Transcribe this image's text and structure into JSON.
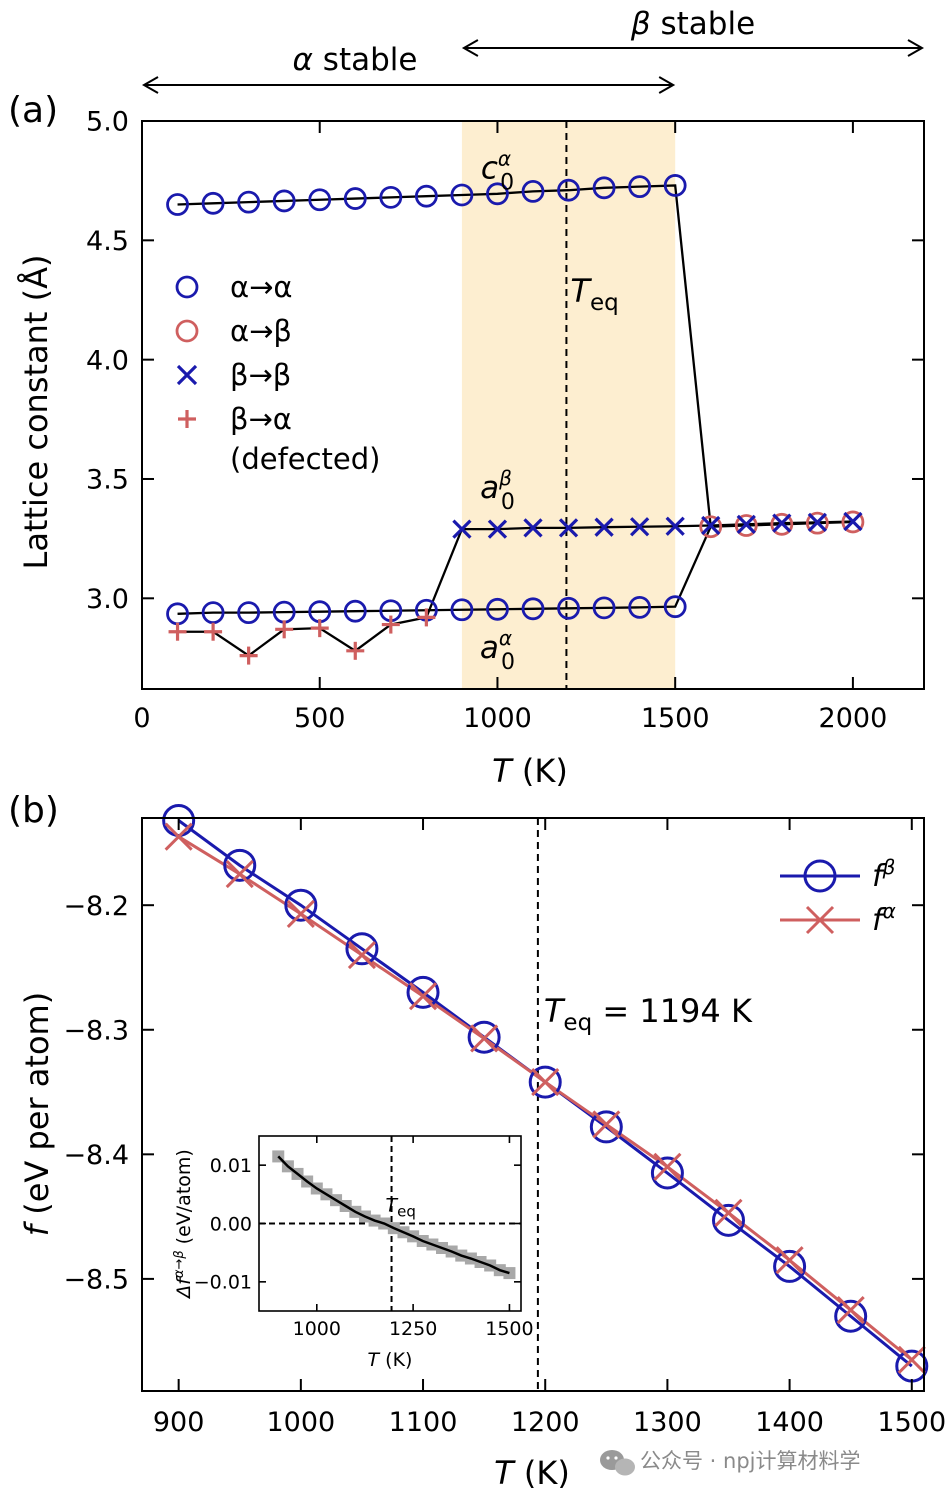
{
  "chart_data": [
    {
      "panel": "(a)",
      "type": "scatter",
      "xlabel": "T (K)",
      "ylabel": "Lattice constant (Å)",
      "xlim": [
        0,
        2200
      ],
      "ylim": [
        2.62,
        5.0
      ],
      "xticks": [
        0,
        500,
        1000,
        1500,
        2000
      ],
      "yticks": [
        3.0,
        3.5,
        4.0,
        4.5,
        5.0
      ],
      "xtick_labels": [
        "0",
        "500",
        "1000",
        "1500",
        "2000"
      ],
      "ytick_labels": [
        "3.0",
        "3.5",
        "4.0",
        "4.5",
        "5.0"
      ],
      "shaded_region": {
        "x": [
          900,
          1500
        ],
        "color": "#fdeed0"
      },
      "vline": {
        "x": 1194,
        "label": "T",
        "label_sub": "eq"
      },
      "regions": {
        "alpha": {
          "greek": "α",
          "text": " stable",
          "x": [
            0,
            1500
          ]
        },
        "beta": {
          "greek": "β",
          "text": " stable",
          "x": [
            900,
            2200
          ]
        }
      },
      "annotations": [
        {
          "base": "c",
          "sub": "0",
          "sup": "α",
          "x": 1000,
          "y": 4.76
        },
        {
          "base": "a",
          "sub": "0",
          "sup": "β",
          "x": 1000,
          "y": 3.42
        },
        {
          "base": "a",
          "sub": "0",
          "sup": "α",
          "x": 1000,
          "y": 2.75
        }
      ],
      "legend": {
        "placement": "center-left",
        "entries": [
          {
            "label": "α→α",
            "marker": "circle",
            "color": "#1a1aad"
          },
          {
            "label": "α→β",
            "marker": "circle",
            "color": "#cf5f5f"
          },
          {
            "label": "β→β",
            "marker": "x",
            "color": "#1a1aad"
          },
          {
            "label": "β→α",
            "label2": "(defected)",
            "marker": "plus",
            "color": "#cf5f5f"
          }
        ]
      },
      "series": [
        {
          "id": "c0",
          "legend_id": "α→α",
          "marker": "circle",
          "color": "#1a1aad",
          "x": [
            100,
            200,
            300,
            400,
            500,
            600,
            700,
            800,
            900,
            1000,
            1100,
            1200,
            1300,
            1400,
            1500
          ],
          "y": [
            4.65,
            4.655,
            4.66,
            4.665,
            4.67,
            4.675,
            4.68,
            4.685,
            4.69,
            4.695,
            4.705,
            4.71,
            4.72,
            4.725,
            4.73
          ]
        },
        {
          "id": "a0_alpha",
          "legend_id": "α→α",
          "marker": "circle",
          "color": "#1a1aad",
          "x": [
            100,
            200,
            300,
            400,
            500,
            600,
            700,
            800,
            900,
            1000,
            1100,
            1200,
            1300,
            1400,
            1500
          ],
          "y": [
            2.935,
            2.94,
            2.94,
            2.942,
            2.944,
            2.946,
            2.948,
            2.95,
            2.952,
            2.954,
            2.956,
            2.958,
            2.96,
            2.962,
            2.965
          ]
        },
        {
          "id": "a0_alpha_to_beta",
          "legend_id": "α→β",
          "marker": "circle",
          "color": "#cf5f5f",
          "x": [
            1600,
            1700,
            1800,
            1900,
            2000
          ],
          "y": [
            3.3,
            3.305,
            3.31,
            3.315,
            3.32
          ]
        },
        {
          "id": "a0_beta",
          "legend_id": "β→β",
          "marker": "x",
          "color": "#1a1aad",
          "x": [
            900,
            1000,
            1100,
            1200,
            1300,
            1400,
            1500,
            1600,
            1700,
            1800,
            1900,
            2000
          ],
          "y": [
            3.29,
            3.29,
            3.295,
            3.295,
            3.298,
            3.3,
            3.302,
            3.305,
            3.31,
            3.315,
            3.318,
            3.322
          ]
        },
        {
          "id": "a0_beta_to_alpha",
          "legend_id": "β→α",
          "marker": "plus",
          "color": "#cf5f5f",
          "x": [
            100,
            200,
            300,
            400,
            500,
            600,
            700,
            800
          ],
          "y": [
            2.86,
            2.86,
            2.76,
            2.87,
            2.875,
            2.78,
            2.89,
            2.92
          ]
        }
      ],
      "connecting_lines": [
        {
          "x": [
            100,
            200,
            300,
            400,
            500,
            600,
            700,
            800,
            900,
            1000,
            1100,
            1200,
            1300,
            1400,
            1500,
            1600,
            1700,
            1800,
            1900,
            2000
          ],
          "y": [
            4.65,
            4.655,
            4.66,
            4.665,
            4.67,
            4.675,
            4.68,
            4.685,
            4.69,
            4.695,
            4.705,
            4.71,
            4.72,
            4.725,
            4.73,
            3.3,
            3.305,
            3.31,
            3.315,
            3.32
          ]
        },
        {
          "x": [
            100,
            200,
            300,
            400,
            500,
            600,
            700,
            800,
            900,
            1000,
            1100,
            1200,
            1300,
            1400,
            1500,
            1600
          ],
          "y": [
            2.935,
            2.94,
            2.94,
            2.942,
            2.944,
            2.946,
            2.948,
            2.95,
            2.952,
            2.954,
            2.956,
            2.958,
            2.96,
            2.962,
            2.965,
            3.3
          ]
        },
        {
          "x": [
            100,
            200,
            300,
            400,
            500,
            600,
            700,
            800,
            900,
            1000,
            1100,
            1200,
            1300,
            1400,
            1500,
            1600,
            1700,
            1800,
            1900,
            2000
          ],
          "y": [
            2.86,
            2.86,
            2.76,
            2.87,
            2.875,
            2.78,
            2.89,
            2.92,
            3.29,
            3.29,
            3.295,
            3.295,
            3.298,
            3.3,
            3.302,
            3.305,
            3.31,
            3.315,
            3.318,
            3.322
          ]
        }
      ]
    },
    {
      "panel": "(b)",
      "type": "line",
      "xlabel": "T (K)",
      "ylabel": "f (eV per atom)",
      "xlim": [
        870,
        1510
      ],
      "ylim": [
        -8.59,
        -8.13
      ],
      "xticks": [
        900,
        1000,
        1100,
        1200,
        1300,
        1400,
        1500
      ],
      "yticks": [
        -8.2,
        -8.3,
        -8.4,
        -8.5
      ],
      "xtick_labels": [
        "900",
        "1000",
        "1100",
        "1200",
        "1300",
        "1400",
        "1500"
      ],
      "ytick_labels": [
        "-8.2",
        "-8.3",
        "-8.4",
        "-8.5"
      ],
      "vline": {
        "x": 1194,
        "label": "T",
        "label_sub": "eq",
        "label_rest": " = 1194 K"
      },
      "legend": {
        "placement": "top-right",
        "entries": [
          {
            "label": "f",
            "sup": "β",
            "marker": "circle",
            "color": "#1a1aad"
          },
          {
            "label": "f",
            "sup": "α",
            "marker": "x",
            "color": "#cf5f5f"
          }
        ]
      },
      "x": [
        900,
        950,
        1000,
        1050,
        1100,
        1150,
        1200,
        1250,
        1300,
        1350,
        1400,
        1450,
        1500
      ],
      "series": [
        {
          "name": "fβ",
          "color": "#1a1aad",
          "marker": "circle",
          "values": [
            -8.132,
            -8.168,
            -8.2,
            -8.235,
            -8.27,
            -8.306,
            -8.342,
            -8.378,
            -8.415,
            -8.453,
            -8.49,
            -8.53,
            -8.57
          ]
        },
        {
          "name": "fα",
          "color": "#cf5f5f",
          "marker": "x",
          "values": [
            -8.145,
            -8.175,
            -8.207,
            -8.24,
            -8.273,
            -8.307,
            -8.342,
            -8.376,
            -8.41,
            -8.447,
            -8.485,
            -8.525,
            -8.565
          ]
        }
      ],
      "inset": {
        "type": "scatter",
        "xlabel": "T (K)",
        "ylabel": "Δf α→β (eV/atom)",
        "ylabel_base": "Δf",
        "ylabel_sup": "α→β",
        "ylabel_rest": " (eV/atom)",
        "xlim": [
          850,
          1530
        ],
        "ylim": [
          -0.015,
          0.015
        ],
        "xticks": [
          1000,
          1250,
          1500
        ],
        "yticks": [
          0.01,
          0.0,
          -0.01
        ],
        "xtick_labels": [
          "1000",
          "1250",
          "1500"
        ],
        "ytick_labels": [
          "0.01",
          "0.00",
          "-0.01"
        ],
        "vline": {
          "x": 1194,
          "label": "T",
          "label_sub": "eq"
        },
        "hline": {
          "y": 0
        },
        "points_color": "#a8a8a8",
        "fit_color": "#000000",
        "x": [
          900,
          925,
          950,
          975,
          1000,
          1025,
          1050,
          1075,
          1100,
          1125,
          1150,
          1175,
          1200,
          1225,
          1250,
          1275,
          1300,
          1325,
          1350,
          1375,
          1400,
          1425,
          1450,
          1475,
          1500
        ],
        "values": [
          0.0115,
          0.0098,
          0.0085,
          0.0072,
          0.006,
          0.005,
          0.004,
          0.003,
          0.002,
          0.0012,
          0.0005,
          0.0,
          -0.0008,
          -0.0015,
          -0.0022,
          -0.003,
          -0.0036,
          -0.0042,
          -0.0048,
          -0.0055,
          -0.006,
          -0.0066,
          -0.0072,
          -0.008,
          -0.0085
        ]
      }
    }
  ],
  "watermark": {
    "brand": "公众号 · npj计算材料学"
  }
}
